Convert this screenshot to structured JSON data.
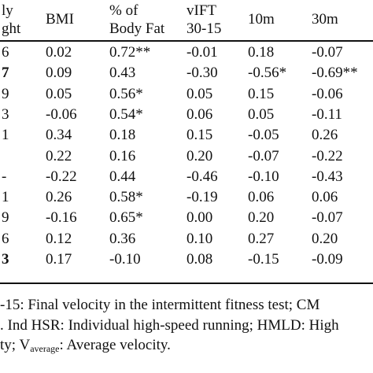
{
  "table": {
    "headers": {
      "c0": [
        "ly",
        "ght"
      ],
      "bmi": [
        "BMI",
        ""
      ],
      "fat": [
        "% of",
        "Body Fat"
      ],
      "vift": [
        "vIFT",
        "30-15"
      ],
      "m10": [
        "10m",
        ""
      ],
      "m30": [
        "30m",
        ""
      ]
    },
    "rows": [
      {
        "c0": "6",
        "bmi": "0.02",
        "fat": "0.72**",
        "vift": "-0.01",
        "m10": "0.18",
        "m30": "-0.07",
        "c0_bold": false
      },
      {
        "c0": "7",
        "bmi": "0.09",
        "fat": "0.43",
        "vift": "-0.30",
        "m10": "-0.56*",
        "m30": "-0.69**",
        "c0_bold": true
      },
      {
        "c0": "9",
        "bmi": "0.05",
        "fat": "0.56*",
        "vift": "0.05",
        "m10": "0.15",
        "m30": "-0.06",
        "c0_bold": false
      },
      {
        "c0": "3",
        "bmi": "-0.06",
        "fat": "0.54*",
        "vift": "0.06",
        "m10": "0.05",
        "m30": "-0.11",
        "c0_bold": false
      },
      {
        "c0": "1",
        "bmi": "0.34",
        "fat": "0.18",
        "vift": "0.15",
        "m10": "-0.05",
        "m30": "0.26",
        "c0_bold": false
      },
      {
        "c0": "",
        "bmi": "0.22",
        "fat": "0.16",
        "vift": "0.20",
        "m10": "-0.07",
        "m30": "-0.22",
        "c0_bold": false
      },
      {
        "c0": "-",
        "bmi": "-0.22",
        "fat": "0.44",
        "vift": "-0.46",
        "m10": "-0.10",
        "m30": "-0.43",
        "c0_bold": false
      },
      {
        "c0": "1",
        "bmi": "0.26",
        "fat": "0.58*",
        "vift": "-0.19",
        "m10": "0.06",
        "m30": "0.06",
        "c0_bold": false
      },
      {
        "c0": "9",
        "bmi": "-0.16",
        "fat": "0.65*",
        "vift": "0.00",
        "m10": "0.20",
        "m30": "-0.07",
        "c0_bold": false
      },
      {
        "c0": "6",
        "bmi": "0.12",
        "fat": "0.36",
        "vift": "0.10",
        "m10": "0.27",
        "m30": "0.20",
        "c0_bold": false
      },
      {
        "c0": "3",
        "bmi": "0.17",
        "fat": "-0.10",
        "vift": "0.08",
        "m10": "-0.15",
        "m30": "-0.09",
        "c0_bold": true
      }
    ]
  },
  "footnote": {
    "line1": "-15: Final velocity in the intermittent fitness test; CM",
    "line2": ". Ind HSR: Individual high-speed running; HMLD: High",
    "line3_prefix": "ty; V",
    "line3_sub": "average",
    "line3_suffix": ": Average velocity."
  }
}
